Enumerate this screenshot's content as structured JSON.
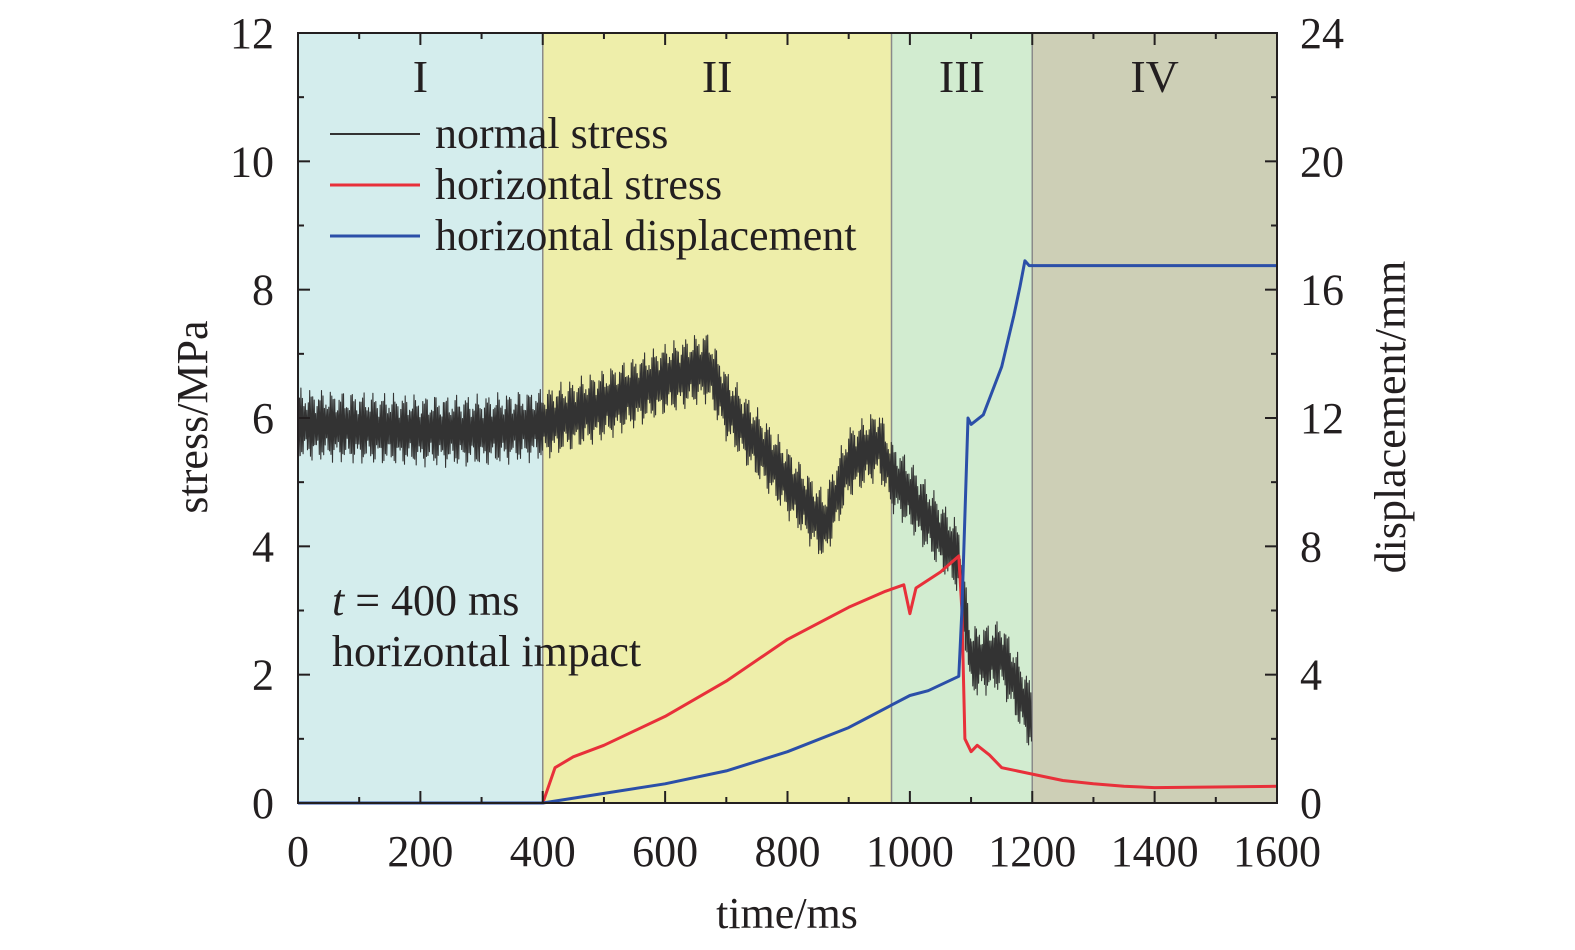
{
  "chart_data": {
    "type": "line",
    "xlabel": "time/ms",
    "ylabel_left": "stress/MPa",
    "ylabel_right": "displacement/mm",
    "xlim": [
      0,
      1600
    ],
    "ylim_left": [
      0,
      12
    ],
    "ylim_right": [
      0,
      24
    ],
    "xticks": [
      0,
      200,
      400,
      600,
      800,
      1000,
      1200,
      1400,
      1600
    ],
    "yticks_left": [
      0,
      2,
      4,
      6,
      8,
      10,
      12
    ],
    "yticks_right": [
      0,
      4,
      8,
      12,
      16,
      20,
      24
    ],
    "grid": false,
    "legend_position": "top-left",
    "stages": [
      {
        "label": "I",
        "x_start": 0,
        "x_end": 400,
        "color": "#d4eded"
      },
      {
        "label": "II",
        "x_start": 400,
        "x_end": 970,
        "color": "#eeeeaa"
      },
      {
        "label": "III",
        "x_start": 970,
        "x_end": 1200,
        "color": "#d2ecd0"
      },
      {
        "label": "IV",
        "x_start": 1200,
        "x_end": 1600,
        "color": "#cdcfb6"
      }
    ],
    "annotation": {
      "prefix": "t",
      "rest": " = 400 ms",
      "line2": "horizontal impact"
    },
    "series": [
      {
        "name": "normal stress",
        "axis": "left",
        "color": "#333333",
        "oscillation_amplitude": 0.5,
        "center_x": [
          0,
          100,
          200,
          300,
          400,
          500,
          600,
          670,
          700,
          750,
          800,
          860,
          900,
          950,
          970,
          1000,
          1040,
          1080,
          1100,
          1150,
          1200
        ],
        "center_y": [
          5.9,
          5.85,
          5.8,
          5.8,
          5.9,
          6.2,
          6.6,
          6.8,
          6.2,
          5.6,
          5.0,
          4.3,
          5.3,
          5.6,
          5.1,
          4.8,
          4.3,
          3.8,
          2.2,
          2.3,
          1.3
        ]
      },
      {
        "name": "horizontal stress",
        "axis": "left",
        "color": "#e8303a",
        "x": [
          0,
          100,
          200,
          300,
          400,
          420,
          450,
          500,
          600,
          700,
          800,
          900,
          960,
          990,
          1000,
          1010,
          1050,
          1080,
          1085,
          1090,
          1100,
          1110,
          1130,
          1150,
          1200,
          1250,
          1300,
          1350,
          1400,
          1500,
          1600
        ],
        "y": [
          0,
          0,
          0,
          0,
          0,
          0.55,
          0.72,
          0.9,
          1.35,
          1.9,
          2.55,
          3.05,
          3.3,
          3.4,
          2.95,
          3.35,
          3.6,
          3.85,
          3.0,
          1.0,
          0.8,
          0.9,
          0.75,
          0.55,
          0.45,
          0.35,
          0.3,
          0.26,
          0.24,
          0.25,
          0.26
        ]
      },
      {
        "name": "horizontal displacement",
        "axis": "right",
        "color": "#2b4fa8",
        "x": [
          0,
          400,
          500,
          600,
          700,
          800,
          900,
          930,
          970,
          1000,
          1030,
          1080,
          1085,
          1095,
          1100,
          1120,
          1150,
          1170,
          1180,
          1188,
          1195,
          1200,
          1300,
          1400,
          1500,
          1600
        ],
        "y": [
          0,
          0,
          0.3,
          0.6,
          1.0,
          1.6,
          2.35,
          2.65,
          3.05,
          3.35,
          3.5,
          3.95,
          6.0,
          12.0,
          11.8,
          12.1,
          13.6,
          15.2,
          16.1,
          16.9,
          16.75,
          16.75,
          16.75,
          16.75,
          16.75,
          16.75
        ]
      }
    ]
  }
}
